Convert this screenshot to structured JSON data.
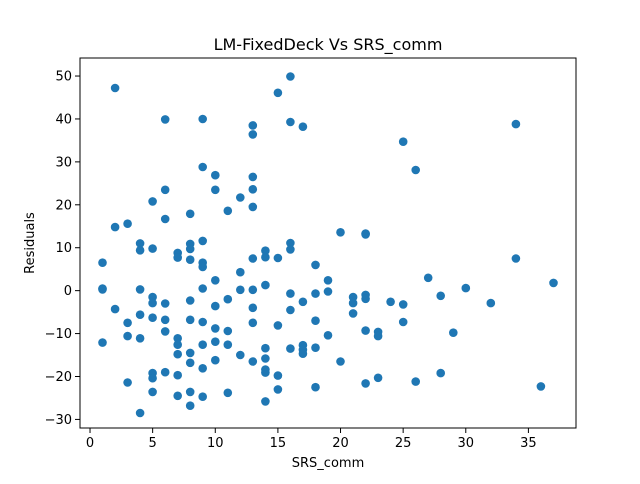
{
  "chart_data": {
    "type": "scatter",
    "title": "LM-FixedDeck Vs SRS_comm",
    "xlabel": "SRS_comm",
    "ylabel": "Residuals",
    "xlim": [
      -0.8,
      38.8
    ],
    "ylim": [
      -32.0,
      54.2
    ],
    "xticks": [
      0,
      5,
      10,
      15,
      20,
      25,
      30,
      35
    ],
    "yticks": [
      -30,
      -20,
      -10,
      0,
      10,
      20,
      30,
      40,
      50
    ],
    "grid": false,
    "legend": "none",
    "marker_color": "#1f77b4",
    "points": [
      [
        2,
        47.2
      ],
      [
        6,
        39.9
      ],
      [
        9,
        40.0
      ],
      [
        15,
        46.1
      ],
      [
        16,
        49.9
      ],
      [
        16,
        39.3
      ],
      [
        17,
        38.2
      ],
      [
        13,
        38.5
      ],
      [
        13,
        36.4
      ],
      [
        25,
        34.7
      ],
      [
        34,
        38.8
      ],
      [
        26,
        28.1
      ],
      [
        9,
        28.8
      ],
      [
        10,
        26.9
      ],
      [
        13,
        26.5
      ],
      [
        6,
        23.5
      ],
      [
        10,
        23.5
      ],
      [
        13,
        23.6
      ],
      [
        12,
        21.7
      ],
      [
        5,
        20.8
      ],
      [
        11,
        18.6
      ],
      [
        13,
        19.5
      ],
      [
        8,
        17.9
      ],
      [
        6,
        16.7
      ],
      [
        2,
        14.8
      ],
      [
        3,
        15.6
      ],
      [
        20,
        13.6
      ],
      [
        22,
        13.1
      ],
      [
        22,
        13.3
      ],
      [
        4,
        11.0
      ],
      [
        9,
        11.6
      ],
      [
        16,
        11.1
      ],
      [
        4,
        9.4
      ],
      [
        5,
        9.8
      ],
      [
        8,
        10.9
      ],
      [
        8,
        9.7
      ],
      [
        14,
        9.3
      ],
      [
        16,
        9.6
      ],
      [
        7,
        8.8
      ],
      [
        14,
        7.8
      ],
      [
        1,
        6.5
      ],
      [
        7,
        7.7
      ],
      [
        8,
        7.2
      ],
      [
        13,
        7.5
      ],
      [
        15,
        7.6
      ],
      [
        9,
        6.5
      ],
      [
        9,
        5.5
      ],
      [
        18,
        6.0
      ],
      [
        34,
        7.5
      ],
      [
        12,
        4.3
      ],
      [
        27,
        3.0
      ],
      [
        10,
        2.4
      ],
      [
        19,
        2.4
      ],
      [
        14,
        1.3
      ],
      [
        37,
        1.8
      ],
      [
        1,
        0.5
      ],
      [
        1,
        0.3
      ],
      [
        4,
        0.3
      ],
      [
        9,
        0.5
      ],
      [
        12,
        0.2
      ],
      [
        13,
        0.2
      ],
      [
        30,
        0.6
      ],
      [
        16,
        -0.7
      ],
      [
        18,
        -0.7
      ],
      [
        19,
        -0.2
      ],
      [
        28,
        -1.2
      ],
      [
        5,
        -1.5
      ],
      [
        11,
        -2.0
      ],
      [
        21,
        -1.5
      ],
      [
        22,
        -1.0
      ],
      [
        22,
        -1.9
      ],
      [
        8,
        -2.3
      ],
      [
        5,
        -2.9
      ],
      [
        6,
        -3.0
      ],
      [
        10,
        -3.6
      ],
      [
        17,
        -2.6
      ],
      [
        21,
        -2.9
      ],
      [
        24,
        -2.6
      ],
      [
        25,
        -3.2
      ],
      [
        32,
        -2.9
      ],
      [
        2,
        -4.3
      ],
      [
        13,
        -4.0
      ],
      [
        16,
        -4.5
      ],
      [
        4,
        -5.6
      ],
      [
        5,
        -6.3
      ],
      [
        6,
        -6.8
      ],
      [
        8,
        -6.8
      ],
      [
        9,
        -7.3
      ],
      [
        21,
        -5.3
      ],
      [
        3,
        -7.5
      ],
      [
        13,
        -7.5
      ],
      [
        15,
        -8.1
      ],
      [
        18,
        -7.0
      ],
      [
        25,
        -7.3
      ],
      [
        6,
        -9.5
      ],
      [
        10,
        -8.8
      ],
      [
        11,
        -9.4
      ],
      [
        22,
        -9.3
      ],
      [
        23,
        -9.6
      ],
      [
        29,
        -9.8
      ],
      [
        19,
        -10.4
      ],
      [
        3,
        -10.6
      ],
      [
        4,
        -11.1
      ],
      [
        7,
        -11.1
      ],
      [
        23,
        -10.6
      ],
      [
        10,
        -11.9
      ],
      [
        1,
        -12.1
      ],
      [
        7,
        -12.6
      ],
      [
        9,
        -12.6
      ],
      [
        11,
        -12.6
      ],
      [
        14,
        -13.4
      ],
      [
        16,
        -13.5
      ],
      [
        17,
        -12.7
      ],
      [
        17,
        -13.8
      ],
      [
        18,
        -13.3
      ],
      [
        7,
        -14.8
      ],
      [
        8,
        -14.5
      ],
      [
        17,
        -14.7
      ],
      [
        10,
        -16.2
      ],
      [
        12,
        -15.0
      ],
      [
        13,
        -16.5
      ],
      [
        14,
        -15.8
      ],
      [
        20,
        -16.5
      ],
      [
        8,
        -16.8
      ],
      [
        9,
        -18.1
      ],
      [
        14,
        -18.4
      ],
      [
        14,
        -19.1
      ],
      [
        5,
        -19.2
      ],
      [
        6,
        -19.0
      ],
      [
        7,
        -19.7
      ],
      [
        15,
        -19.8
      ],
      [
        5,
        -20.4
      ],
      [
        23,
        -20.3
      ],
      [
        3,
        -21.4
      ],
      [
        22,
        -21.6
      ],
      [
        26,
        -21.2
      ],
      [
        28,
        -19.2
      ],
      [
        18,
        -22.5
      ],
      [
        15,
        -23.0
      ],
      [
        36,
        -22.3
      ],
      [
        5,
        -23.6
      ],
      [
        8,
        -23.6
      ],
      [
        11,
        -23.8
      ],
      [
        7,
        -24.5
      ],
      [
        9,
        -24.7
      ],
      [
        14,
        -25.8
      ],
      [
        8,
        -26.8
      ],
      [
        4,
        -28.5
      ]
    ]
  }
}
